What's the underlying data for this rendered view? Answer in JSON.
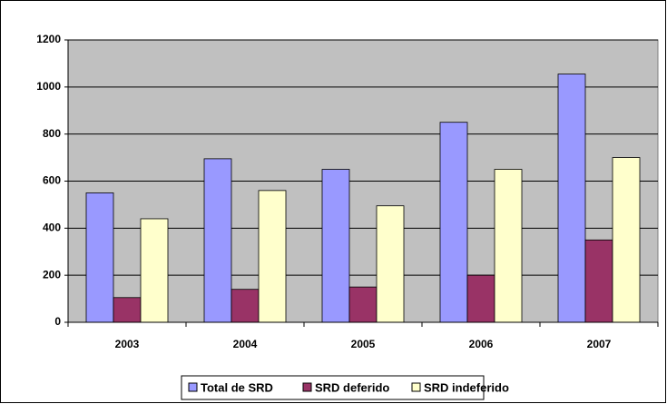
{
  "chart_data": {
    "type": "bar",
    "categories": [
      "2003",
      "2004",
      "2005",
      "2006",
      "2007"
    ],
    "series": [
      {
        "name": "Total de SRD",
        "color": "#9999ff",
        "values": [
          550,
          695,
          650,
          850,
          1055
        ]
      },
      {
        "name": "SRD deferido",
        "color": "#993366",
        "values": [
          105,
          140,
          150,
          200,
          350
        ]
      },
      {
        "name": "SRD indeferido",
        "color": "#ffffcc",
        "values": [
          440,
          560,
          495,
          650,
          700
        ]
      }
    ],
    "ylim": [
      0,
      1200
    ],
    "yticks": [
      0,
      200,
      400,
      600,
      800,
      1000,
      1200
    ],
    "grid": true,
    "plot_color": "#c0c0c0",
    "legend": "bottom"
  }
}
